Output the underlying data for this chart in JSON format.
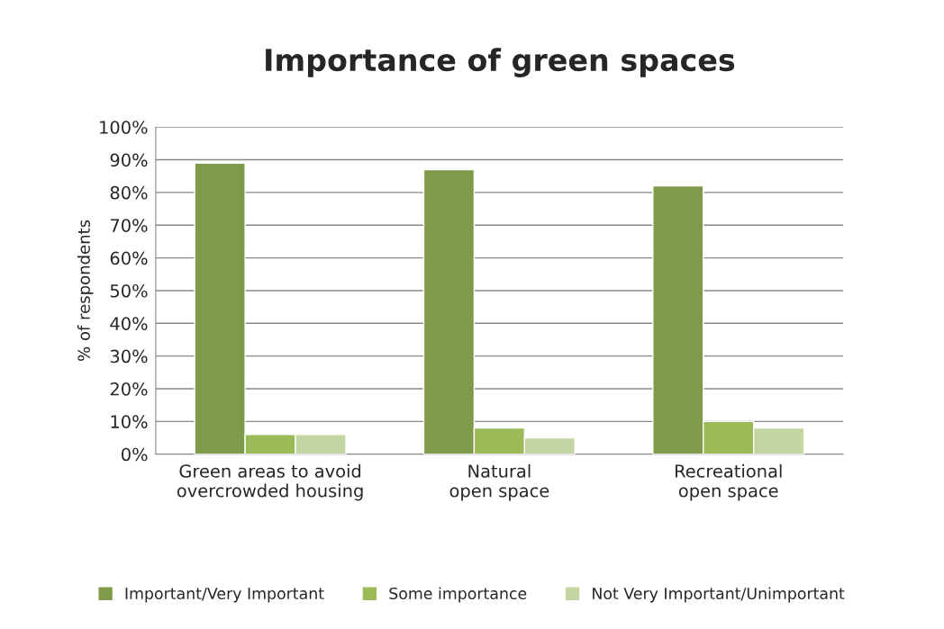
{
  "chart_data": {
    "type": "bar",
    "title": "Importance of green spaces",
    "ylabel": "% of respondents",
    "categories": [
      "Green areas to avoid\novercrowded housing",
      "Natural\nopen space",
      "Recreational\nopen space"
    ],
    "series": [
      {
        "name": "Important/Very Important",
        "color": "#7f9a48",
        "values": [
          89,
          87,
          82
        ]
      },
      {
        "name": "Some importance",
        "color": "#9bbb59",
        "values": [
          6,
          8,
          10
        ]
      },
      {
        "name": "Not Very Important/Unimportant",
        "color": "#c3d5a0",
        "values": [
          6,
          5,
          8
        ]
      }
    ],
    "ylim": [
      0,
      100
    ],
    "yticks": [
      {
        "value": 0,
        "label": "0%"
      },
      {
        "value": 10,
        "label": "10%"
      },
      {
        "value": 20,
        "label": "20%"
      },
      {
        "value": 30,
        "label": "30%"
      },
      {
        "value": 40,
        "label": "40%"
      },
      {
        "value": 50,
        "label": "50%"
      },
      {
        "value": 60,
        "label": "60%"
      },
      {
        "value": 70,
        "label": "70%"
      },
      {
        "value": 80,
        "label": "80%"
      },
      {
        "value": 90,
        "label": "90%"
      },
      {
        "value": 100,
        "label": "100%"
      }
    ],
    "grid": "y",
    "legend": "bottom"
  }
}
